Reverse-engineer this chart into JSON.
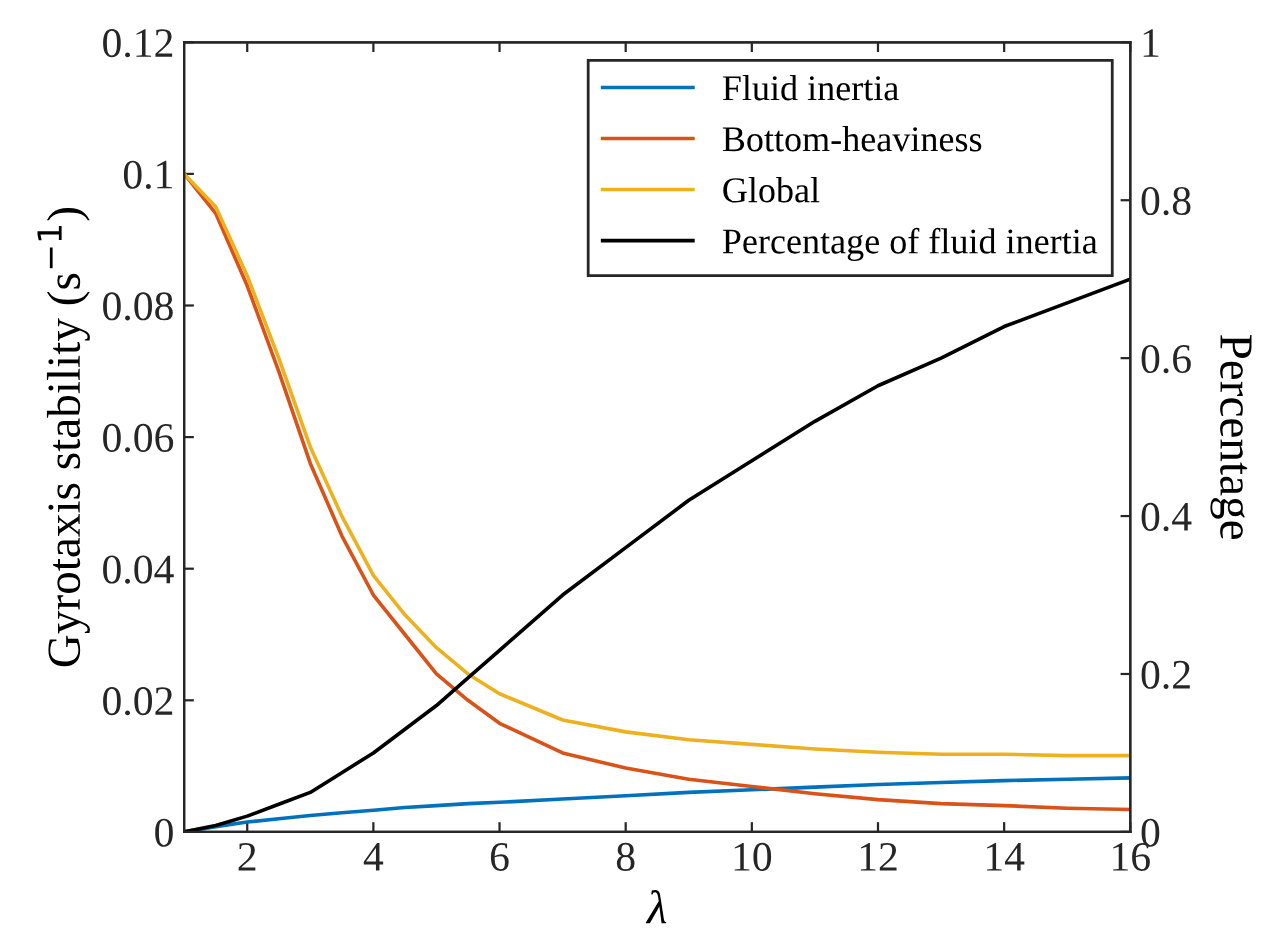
{
  "chart_data": {
    "type": "line",
    "xlabel": "λ",
    "ylabel": "Gyrotaxis stability (s$^{−1}$)",
    "y2label": "Percentage",
    "x": [
      1,
      1.5,
      2,
      2.5,
      3,
      3.5,
      4,
      4.5,
      5,
      5.5,
      6,
      7,
      8,
      9,
      10,
      11,
      12,
      13,
      14,
      15,
      16
    ],
    "series": [
      {
        "name": "Fluid inertia",
        "color": "#0072bd",
        "values": [
          0,
          0.0008,
          0.0015,
          0.002,
          0.0025,
          0.0029,
          0.0033,
          0.0037,
          0.004,
          0.0043,
          0.0045,
          0.005,
          0.0055,
          0.006,
          0.0064,
          0.0068,
          0.0072,
          0.0075,
          0.0078,
          0.008,
          0.0082
        ]
      },
      {
        "name": "Bottom-heaviness",
        "color": "#d95319",
        "values": [
          0.1,
          0.094,
          0.083,
          0.07,
          0.056,
          0.045,
          0.036,
          0.03,
          0.024,
          0.02,
          0.0165,
          0.012,
          0.0097,
          0.008,
          0.0069,
          0.0058,
          0.0049,
          0.0043,
          0.004,
          0.0036,
          0.0034
        ]
      },
      {
        "name": "Global",
        "color": "#edb120",
        "values": [
          0.1,
          0.095,
          0.0845,
          0.072,
          0.0585,
          0.048,
          0.039,
          0.033,
          0.028,
          0.024,
          0.021,
          0.017,
          0.0152,
          0.014,
          0.0133,
          0.0126,
          0.0121,
          0.0118,
          0.0118,
          0.0116,
          0.0116
        ]
      },
      {
        "name": "Percentage of fluid inertia",
        "color": "#000000",
        "axis": "y2",
        "values": [
          0,
          0.008,
          0.02,
          0.035,
          0.05,
          0.075,
          0.1,
          0.13,
          0.16,
          0.195,
          0.23,
          0.3,
          0.36,
          0.42,
          0.47,
          0.52,
          0.565,
          0.6,
          0.64,
          0.67,
          0.7
        ]
      }
    ],
    "xlim": [
      1,
      16
    ],
    "xticks": [
      2,
      4,
      6,
      8,
      10,
      12,
      14,
      16
    ],
    "ylim": [
      0,
      0.12
    ],
    "yticks": [
      0,
      0.02,
      0.04,
      0.06,
      0.08,
      0.1,
      0.12
    ],
    "y2lim": [
      0,
      1
    ],
    "y2ticks": [
      0,
      0.2,
      0.4,
      0.6,
      0.8,
      1
    ],
    "grid": false,
    "legend": "top right",
    "marker": "none",
    "line_style": "solid"
  }
}
